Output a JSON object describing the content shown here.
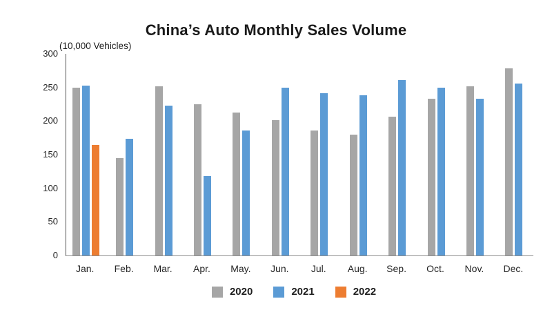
{
  "chart_data": {
    "type": "bar",
    "title": "China’s Auto Monthly Sales Volume",
    "unit_label": "(10,000 Vehicles)",
    "xlabel": "",
    "ylabel": "(10,000 Vehicles)",
    "categories": [
      "Jan.",
      "Feb.",
      "Mar.",
      "Apr.",
      "May.",
      "Jun.",
      "Jul.",
      "Aug.",
      "Sep.",
      "Oct.",
      "Nov.",
      "Dec."
    ],
    "series": [
      {
        "name": "2020",
        "color": "#a6a6a6",
        "values": [
          250,
          145,
          252,
          225,
          213,
          201,
          186,
          180,
          207,
          233,
          252,
          278
        ]
      },
      {
        "name": "2021",
        "color": "#5b9bd5",
        "values": [
          253,
          174,
          223,
          118,
          186,
          250,
          242,
          238,
          261,
          250,
          233,
          256
        ]
      },
      {
        "name": "2022",
        "color": "#ed7d31",
        "values": [
          164,
          null,
          null,
          null,
          null,
          null,
          null,
          null,
          null,
          null,
          null,
          null
        ]
      }
    ],
    "ylim": [
      0,
      300
    ],
    "yticks": [
      0,
      50,
      100,
      150,
      200,
      250,
      300
    ],
    "grid": false,
    "legend_position": "bottom"
  }
}
